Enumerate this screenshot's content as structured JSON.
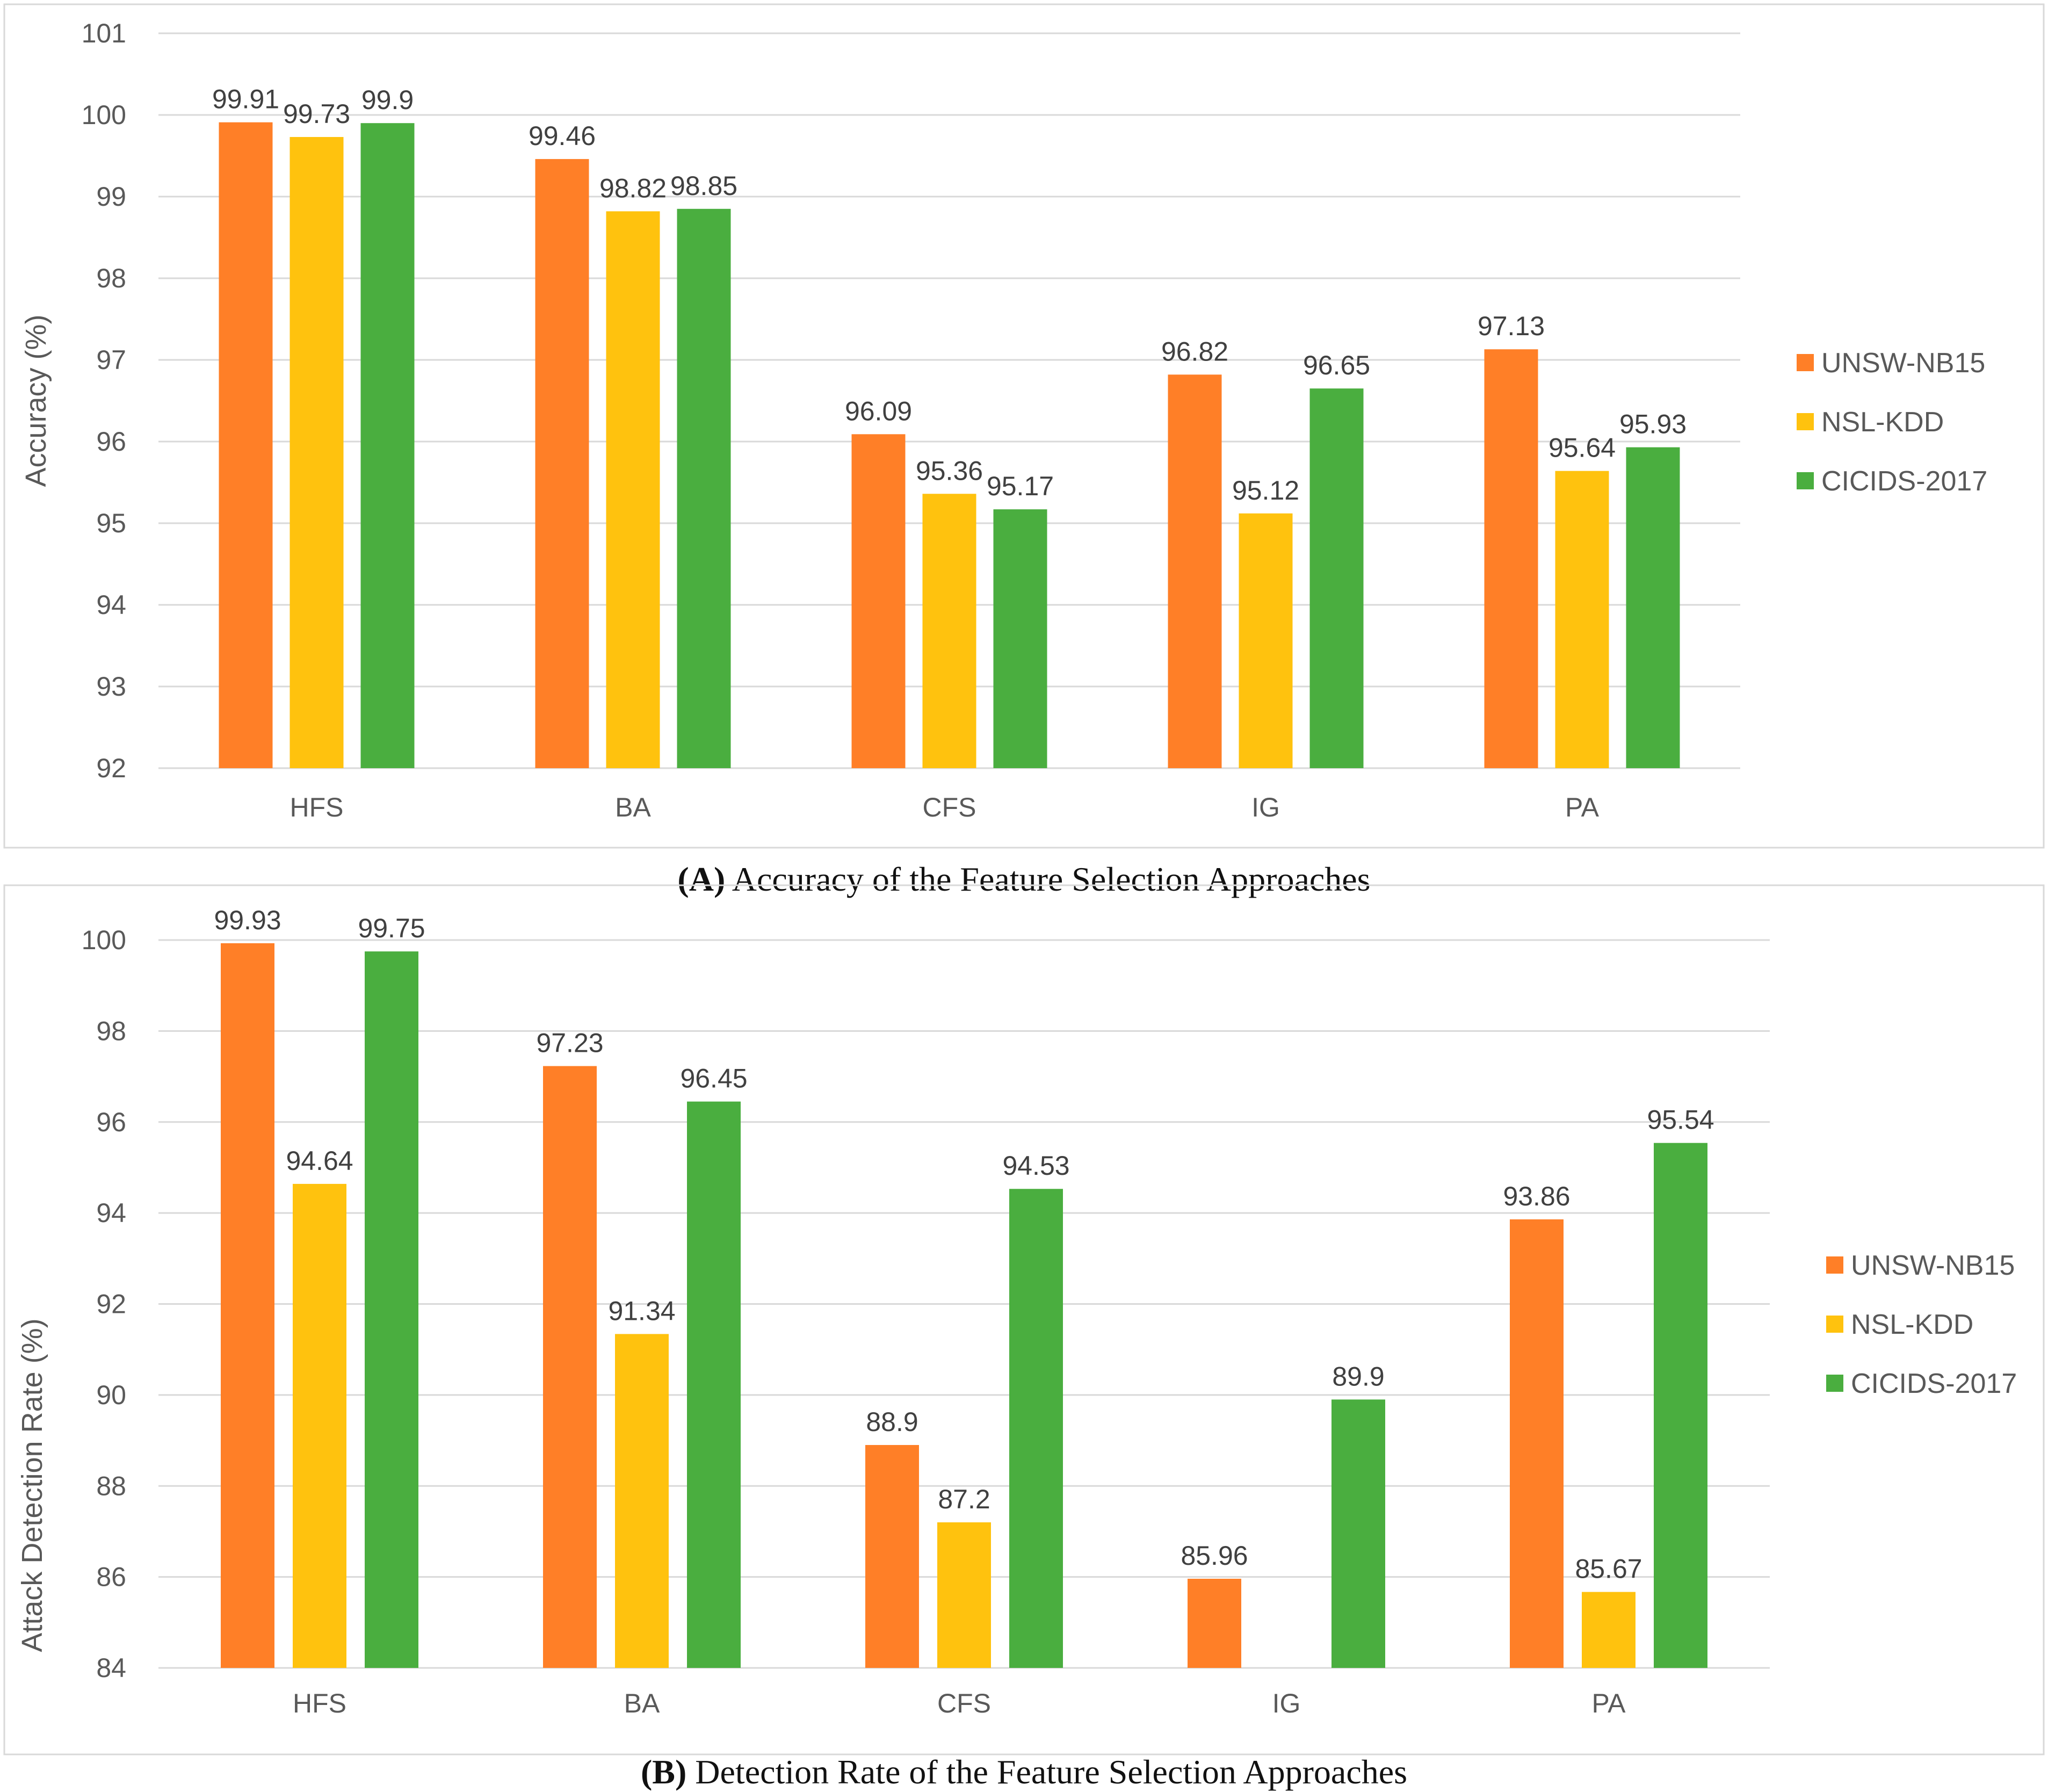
{
  "colors": {
    "UNSW-NB15": "#FF7F27",
    "NSL-KDD": "#FFC20E",
    "CICIDS-2017": "#4AAE3F",
    "grid": "#D9D9D9",
    "axis_text": "#595959",
    "label_text": "#404040",
    "border": "#D9D9D9"
  },
  "captions": [
    {
      "tag": "(A)",
      "text": "Accuracy of the Feature Selection Approaches"
    },
    {
      "tag": "(B)",
      "text": "Detection Rate of the Feature Selection Approaches"
    }
  ],
  "chart_data": [
    {
      "type": "bar",
      "title": "",
      "xlabel": "",
      "ylabel": "Accuracy (%)",
      "ylim": [
        92,
        101
      ],
      "yticks": [
        92,
        93,
        94,
        95,
        96,
        97,
        98,
        99,
        100,
        101
      ],
      "categories": [
        "HFS",
        "BA",
        "CFS",
        "IG",
        "PA"
      ],
      "series": [
        {
          "name": "UNSW-NB15",
          "values": [
            99.91,
            99.46,
            96.09,
            96.82,
            97.13
          ]
        },
        {
          "name": "NSL-KDD",
          "values": [
            99.73,
            98.82,
            95.36,
            95.12,
            95.64
          ]
        },
        {
          "name": "CICIDS-2017",
          "values": [
            99.9,
            98.85,
            95.17,
            96.65,
            95.93
          ]
        }
      ],
      "grid": true,
      "legend": "right"
    },
    {
      "type": "bar",
      "title": "",
      "xlabel": "",
      "ylabel": "Attack Detection Rate (%)",
      "ylim": [
        84,
        100
      ],
      "yticks": [
        84,
        86,
        88,
        90,
        92,
        94,
        96,
        98,
        100
      ],
      "categories": [
        "HFS",
        "BA",
        "CFS",
        "IG",
        "PA"
      ],
      "series": [
        {
          "name": "UNSW-NB15",
          "values": [
            99.93,
            97.23,
            88.9,
            85.96,
            93.86
          ]
        },
        {
          "name": "NSL-KDD",
          "values": [
            94.64,
            91.34,
            87.2,
            null,
            85.67
          ]
        },
        {
          "name": "CICIDS-2017",
          "values": [
            99.75,
            96.45,
            94.53,
            89.9,
            95.54
          ]
        }
      ],
      "grid": true,
      "legend": "right"
    }
  ]
}
